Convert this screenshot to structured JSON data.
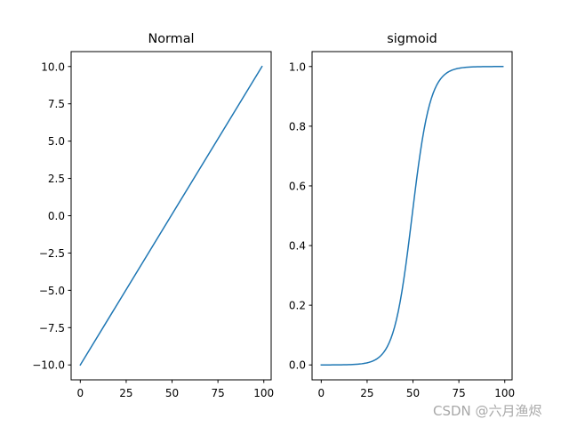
{
  "chart_data": [
    {
      "type": "line",
      "title": "Normal",
      "xlabel": "",
      "ylabel": "",
      "x_range": [
        0,
        99
      ],
      "xticks": [
        0,
        25,
        50,
        75,
        100
      ],
      "xtick_labels": [
        "0",
        "25",
        "50",
        "75",
        "100"
      ],
      "yticks": [
        -10.0,
        -7.5,
        -5.0,
        -2.5,
        0.0,
        2.5,
        5.0,
        7.5,
        10.0
      ],
      "ytick_labels": [
        "−10.0",
        "−7.5",
        "−5.0",
        "−2.5",
        "0.0",
        "2.5",
        "5.0",
        "7.5",
        "10.0"
      ],
      "xlim": [
        -5,
        104
      ],
      "ylim": [
        -11,
        11
      ],
      "grid": false,
      "series": [
        {
          "name": "normal",
          "color": "#1f77b4",
          "x": [
            0,
            99
          ],
          "values": [
            -10.0,
            10.0
          ],
          "description": "linear, y = -10 + 20*x/99"
        }
      ]
    },
    {
      "type": "line",
      "title": "sigmoid",
      "xlabel": "",
      "ylabel": "",
      "x_range": [
        0,
        99
      ],
      "xticks": [
        0,
        25,
        50,
        75,
        100
      ],
      "xtick_labels": [
        "0",
        "25",
        "50",
        "75",
        "100"
      ],
      "yticks": [
        0.0,
        0.2,
        0.4,
        0.6,
        0.8,
        1.0
      ],
      "ytick_labels": [
        "0.0",
        "0.2",
        "0.4",
        "0.6",
        "0.8",
        "1.0"
      ],
      "xlim": [
        -5,
        104
      ],
      "ylim": [
        -0.05,
        1.05
      ],
      "grid": false,
      "series": [
        {
          "name": "sigmoid",
          "color": "#1f77b4",
          "x": [
            0,
            10,
            20,
            25,
            30,
            35,
            40,
            45,
            50,
            55,
            60,
            65,
            70,
            75,
            80,
            90,
            99
          ],
          "values": [
            0.0,
            0.0002,
            0.0017,
            0.0053,
            0.0164,
            0.0494,
            0.1377,
            0.3214,
            0.5505,
            0.777,
            0.9037,
            0.9658,
            0.9891,
            0.9966,
            0.999,
            0.9999,
            1.0
          ],
          "description": "1/(1+exp(-t)), t = linspace(-10,10,100)"
        }
      ]
    }
  ],
  "watermark": "CSDN @六月渔烬"
}
